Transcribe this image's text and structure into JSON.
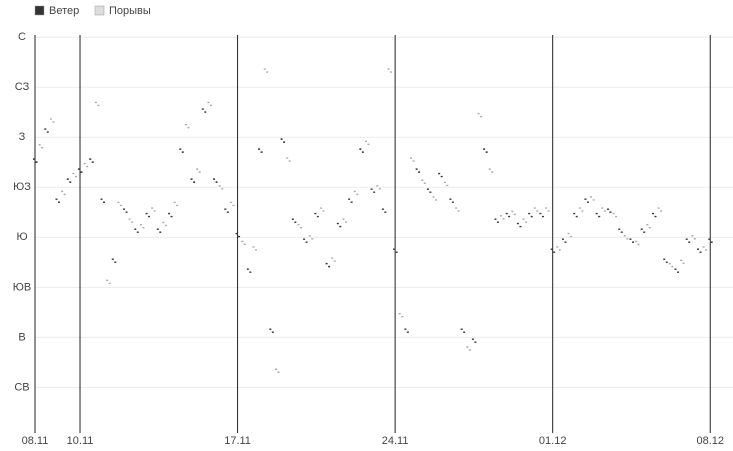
{
  "chart_data": {
    "type": "scatter",
    "series": [
      {
        "name": "Ветер",
        "color": "#333333",
        "x": [
          0,
          0.5,
          1,
          1.5,
          2,
          2.5,
          3,
          3.5,
          4,
          4.5,
          5,
          5.5,
          6,
          6.5,
          7,
          7.5,
          8,
          8.5,
          9,
          9.5,
          10,
          10.5,
          11,
          11.5,
          12,
          12.5,
          13,
          13.5,
          14,
          14.5,
          15,
          15.5,
          16,
          16.5,
          17,
          17.5,
          18,
          18.5,
          19,
          19.5,
          20,
          20.5,
          21,
          21.5,
          22,
          22.5,
          23,
          23.5,
          24,
          24.5,
          25,
          25.5,
          26,
          26.5,
          27,
          27.5,
          28,
          28.5,
          29,
          29.5,
          30
        ],
        "values": [
          249,
          276,
          213,
          231,
          240,
          249,
          213,
          159,
          204,
          186,
          200,
          186,
          200,
          258,
          231,
          294,
          231,
          204,
          182,
          150,
          258,
          96,
          267,
          195,
          177,
          200,
          155,
          191,
          213,
          258,
          222,
          204,
          168,
          96,
          240,
          222,
          236,
          213,
          96,
          87,
          258,
          195,
          200,
          191,
          200,
          200,
          168,
          177,
          200,
          213,
          200,
          204,
          186,
          177,
          186,
          200,
          159,
          150,
          177,
          168,
          177
        ]
      },
      {
        "name": "Порывы",
        "color": "#dddddd",
        "x": [
          0.25,
          0.75,
          1.25,
          1.75,
          2.25,
          2.75,
          3.25,
          3.75,
          4.25,
          4.75,
          5.25,
          5.75,
          6.25,
          6.75,
          7.25,
          7.75,
          8.25,
          8.75,
          9.25,
          9.75,
          10.25,
          10.75,
          11.25,
          11.75,
          12.25,
          12.75,
          13.25,
          13.75,
          14.25,
          14.75,
          15.25,
          15.75,
          16.25,
          16.75,
          17.25,
          17.75,
          18.25,
          18.75,
          19.25,
          19.75,
          20.25,
          20.75,
          21.25,
          21.75,
          22.25,
          22.75,
          23.25,
          23.75,
          24.25,
          24.75,
          25.25,
          25.75,
          26.25,
          26.75,
          27.25,
          27.75,
          28.25,
          28.75,
          29.25,
          29.75
        ],
        "values": [
          262,
          285,
          220,
          236,
          245,
          300,
          140,
          210,
          195,
          190,
          205,
          192,
          210,
          280,
          240,
          300,
          225,
          210,
          175,
          170,
          330,
          60,
          250,
          190,
          180,
          205,
          160,
          195,
          220,
          265,
          225,
          330,
          110,
          250,
          230,
          215,
          228,
          205,
          80,
          290,
          240,
          198,
          202,
          195,
          205,
          205,
          170,
          182,
          205,
          215,
          205,
          200,
          180,
          175,
          190,
          205,
          155,
          158,
          180,
          170
        ]
      }
    ],
    "xlim": [
      0,
      31.1
    ],
    "xticks": [
      {
        "value": 0,
        "label": "08.11"
      },
      {
        "value": 2,
        "label": "10.11"
      },
      {
        "value": 9,
        "label": "17.11"
      },
      {
        "value": 16,
        "label": "24.11"
      },
      {
        "value": 23,
        "label": "01.12"
      },
      {
        "value": 30,
        "label": "08.12"
      }
    ],
    "ylim": [
      4,
      362
    ],
    "yticks": [
      {
        "value": 360,
        "label": "С"
      },
      {
        "value": 315,
        "label": "СЗ"
      },
      {
        "value": 270,
        "label": "З"
      },
      {
        "value": 225,
        "label": "ЮЗ"
      },
      {
        "value": 180,
        "label": "Ю"
      },
      {
        "value": 135,
        "label": "ЮВ"
      },
      {
        "value": 90,
        "label": "В"
      },
      {
        "value": 45,
        "label": "СВ"
      }
    ],
    "grid": true
  }
}
